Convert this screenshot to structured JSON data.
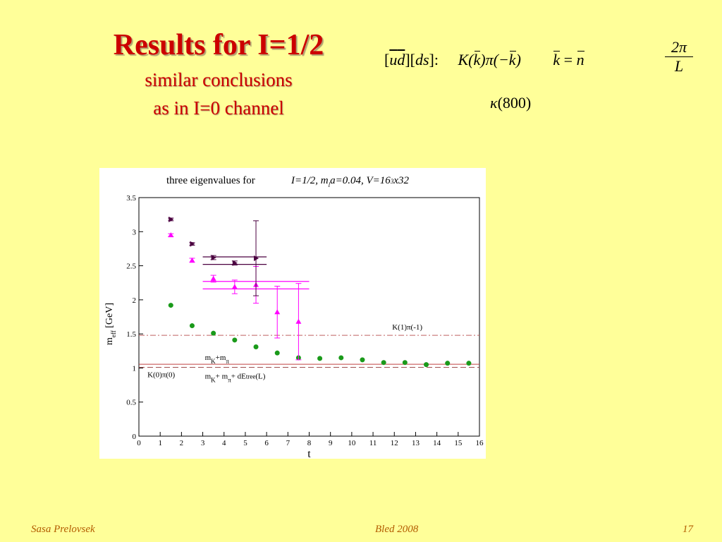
{
  "slide": {
    "title": "Results for I=1/2",
    "subtitle": [
      "similar conclusions",
      "as in I=0 channel"
    ],
    "formula": {
      "lhs": [
        "[",
        "u",
        "d",
        "][",
        "ds",
        "]:"
      ],
      "state": [
        "K(",
        "k",
        ")π(−",
        "k",
        ")"
      ],
      "momentum": [
        "k",
        " = ",
        "n"
      ],
      "num": "2π",
      "den": "L",
      "resonance": [
        "κ",
        "(800)"
      ]
    },
    "footer": {
      "author": "Sasa Prelovsek",
      "event": "Bled 2008",
      "page": "17"
    }
  },
  "chart_data": {
    "type": "scatter",
    "title": "three eigenvalues for",
    "title_params": [
      "I=1/2,  m",
      "l",
      "a=0.04,  V=16",
      "3",
      "x32"
    ],
    "title_params_offsets": [
      "sub",
      "sup"
    ],
    "x_label": "t",
    "y_label": [
      "m",
      "eff",
      " [GeV]"
    ],
    "y_label_offsets": [
      "sub"
    ],
    "xlim": [
      0,
      16
    ],
    "xticks": [
      0,
      1,
      2,
      3,
      4,
      5,
      6,
      7,
      8,
      9,
      10,
      11,
      12,
      13,
      14,
      15,
      16
    ],
    "ylim": [
      0,
      3.5
    ],
    "yticks": [
      0,
      0.5,
      1,
      1.5,
      2,
      2.5,
      3,
      3.5
    ],
    "series": [
      {
        "color": "#1a9a1a",
        "marker": "circle",
        "x": [
          1.5,
          2.5,
          3.5,
          4.5,
          5.5,
          6.5,
          7.5,
          8.5,
          9.5,
          10.5,
          11.5,
          12.5,
          13.5,
          14.5,
          15.5
        ],
        "values": [
          1.92,
          1.62,
          1.51,
          1.41,
          1.31,
          1.22,
          1.15,
          1.14,
          1.15,
          1.12,
          1.08,
          1.08,
          1.05,
          1.07,
          1.07
        ]
      },
      {
        "color": "#ff00ff",
        "marker": "triangle-up",
        "x": [
          1.5,
          2.5,
          3.5,
          4.5,
          5.5,
          6.5,
          7.5
        ],
        "values": [
          2.95,
          2.58,
          2.31,
          2.19,
          2.22,
          1.82,
          1.68
        ],
        "errors": [
          0.02,
          0.03,
          0.05,
          0.1,
          0.27,
          0.38,
          0.56
        ]
      },
      {
        "color": "#4b0040",
        "marker": "triangle-right",
        "x": [
          1.5,
          2.5,
          3.5,
          4.5,
          5.5
        ],
        "values": [
          3.18,
          2.82,
          2.62,
          2.54,
          2.61
        ],
        "errors": [
          0.02,
          0.02,
          0.03,
          0.03,
          0.55
        ]
      }
    ],
    "fits": [
      {
        "color": "#4b0040",
        "t_range": [
          3,
          6
        ],
        "values": [
          2.52,
          2.63
        ]
      },
      {
        "color": "#ff00ff",
        "t_range": [
          3,
          8
        ],
        "values": [
          2.16,
          2.27
        ]
      }
    ],
    "hlines": [
      {
        "value": 1.48,
        "style": "dashdot",
        "color": "#c06060",
        "labels": [
          {
            "parts": [
              "K(1)π(-1)"
            ],
            "offsets": []
          }
        ]
      },
      {
        "value": 1.055,
        "style": "solid",
        "color": "#c04040",
        "labels": [
          {
            "parts": [
              "m",
              "K",
              "+m",
              "π"
            ],
            "offsets": [
              "sub",
              "sub"
            ]
          }
        ]
      },
      {
        "value": 1.01,
        "style": "dashed",
        "color": "#a05050",
        "labels": [
          {
            "parts": [
              "K(0)π(0)"
            ],
            "offsets": []
          },
          {
            "parts": [
              "m",
              "K",
              "+ m",
              "π",
              "+ dE",
              "tree",
              "(L)"
            ],
            "offsets": [
              "sub",
              "sub",
              "sup"
            ]
          }
        ]
      }
    ]
  }
}
